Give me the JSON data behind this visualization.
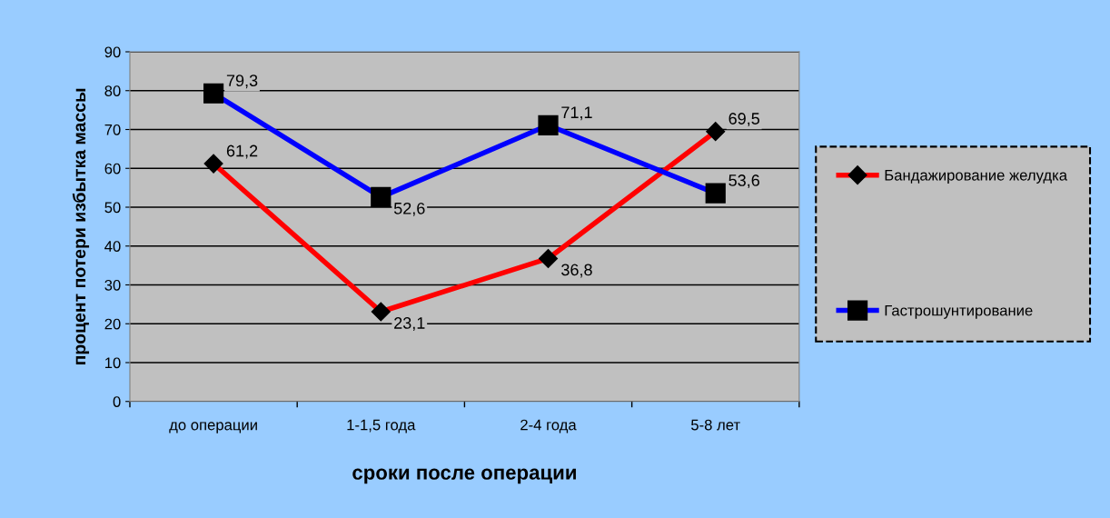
{
  "chart_data": {
    "type": "line",
    "xlabel": "сроки после операции",
    "ylabel": "процент потери избытка массы",
    "categories": [
      "до операции",
      "1-1,5 года",
      "2-4 года",
      "5-8 лет"
    ],
    "series": [
      {
        "name": "Бандажирование желудка",
        "color": "#ff0000",
        "marker": "diamond",
        "values": [
          61.2,
          23.1,
          36.8,
          69.5
        ],
        "value_labels": [
          "61,2",
          "23,1",
          "36,8",
          "69,5"
        ]
      },
      {
        "name": "Гастрошунтирование",
        "color": "#0000ff",
        "marker": "square",
        "values": [
          79.3,
          52.6,
          71.1,
          53.6
        ],
        "value_labels": [
          "79,3",
          "52,6",
          "71,1",
          "53,6"
        ]
      }
    ],
    "ylim": [
      0,
      90
    ],
    "yticks": [
      0,
      10,
      20,
      30,
      40,
      50,
      60,
      70,
      80,
      90
    ],
    "grid": "y",
    "legend": "right"
  }
}
